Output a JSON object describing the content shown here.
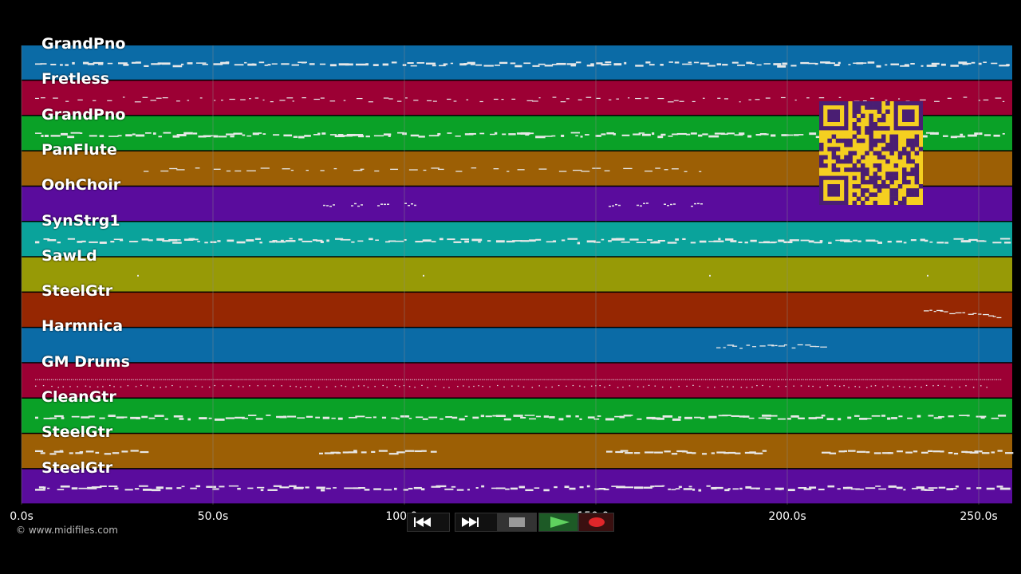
{
  "tracks": [
    {
      "name": "GrandPno",
      "color": "#0b6ba6",
      "pattern": "dense"
    },
    {
      "name": "Fretless",
      "color": "#9c0034",
      "pattern": "sparse-dash"
    },
    {
      "name": "GrandPno",
      "color": "#0aa127",
      "pattern": "dense"
    },
    {
      "name": "PanFlute",
      "color": "#9c5f05",
      "pattern": "melody"
    },
    {
      "name": "OohChoir",
      "color": "#5a0c9d",
      "pattern": "clusters"
    },
    {
      "name": "SynStrg1",
      "color": "#0aa39b",
      "pattern": "dense"
    },
    {
      "name": "SawLd",
      "color": "#979a06",
      "pattern": "dots"
    },
    {
      "name": "SteelGtr",
      "color": "#962702",
      "pattern": "end-phrase"
    },
    {
      "name": "Harmnica",
      "color": "#0b6ba6",
      "pattern": "mid-phrase"
    },
    {
      "name": "GM Drums",
      "color": "#9c0034",
      "pattern": "drums"
    },
    {
      "name": "CleanGtr",
      "color": "#0aa127",
      "pattern": "dense"
    },
    {
      "name": "SteelGtr",
      "color": "#9c5f05",
      "pattern": "blocks"
    },
    {
      "name": "SteelGtr",
      "color": "#5a0c9d",
      "pattern": "dense"
    }
  ],
  "timeline": {
    "ticks": [
      "0.0s",
      "50.0s",
      "100.0s",
      "150.0s",
      "200.0s",
      "250.0s"
    ]
  },
  "copyright": "© www.midifiles.com",
  "transport": {
    "rewind": "rewind-icon",
    "fast_forward": "fast-forward-icon",
    "stop": "stop-icon",
    "play": "play-icon",
    "record": "record-icon"
  },
  "qr_code": "qr-code-icon",
  "colors": {
    "background": "#000000",
    "grid": "#888888",
    "note": "#e8e8e8",
    "qr_bg": "#f5cf20",
    "qr_fg": "#4a1e73"
  }
}
